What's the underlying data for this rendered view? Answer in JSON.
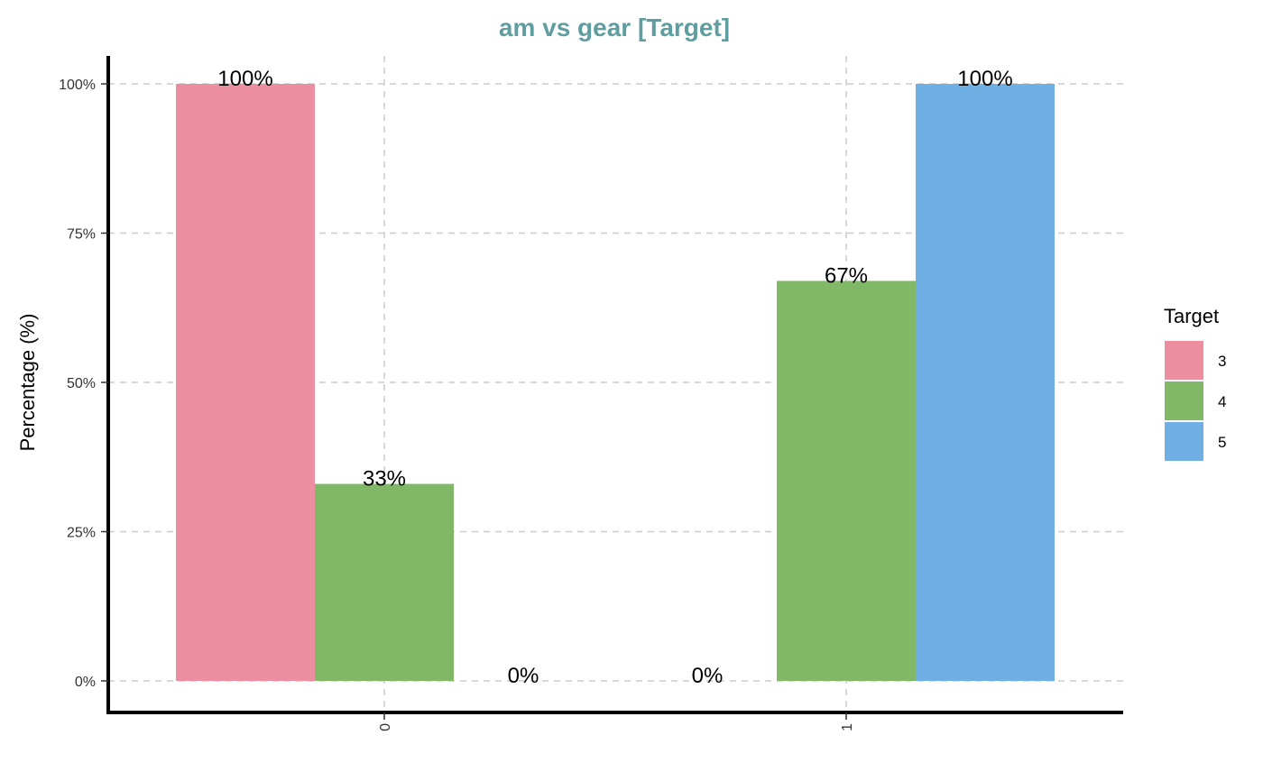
{
  "chart_data": {
    "type": "bar",
    "title": "am vs gear [Target]",
    "xlabel": "",
    "ylabel": "Percentage (%)",
    "categories": [
      "0",
      "1"
    ],
    "series": [
      {
        "name": "3",
        "values": [
          100,
          0
        ],
        "labels": [
          "100%",
          ""
        ]
      },
      {
        "name": "4",
        "values": [
          33,
          67
        ],
        "labels": [
          "33%",
          "67%"
        ]
      },
      {
        "name": "5",
        "values": [
          0,
          100
        ],
        "labels": [
          "0%",
          "100%"
        ]
      }
    ],
    "extra_zero_labels": [
      {
        "category_index": 1,
        "series_index": 0,
        "label": "0%"
      }
    ],
    "ylim": [
      0,
      100
    ],
    "yticks": [
      0,
      25,
      50,
      75,
      100
    ],
    "ytick_labels": [
      "0%",
      "25%",
      "50%",
      "75%",
      "100%"
    ],
    "grid": true,
    "grid_style": "dashed",
    "legend": {
      "title": "Target",
      "placement": "right"
    },
    "colors": {
      "title": "#5F9EA0",
      "series": [
        "#EB8FA0",
        "#80B867",
        "#6FAFE3"
      ],
      "grid": "#CCCCCC",
      "axis": "#000000"
    }
  }
}
